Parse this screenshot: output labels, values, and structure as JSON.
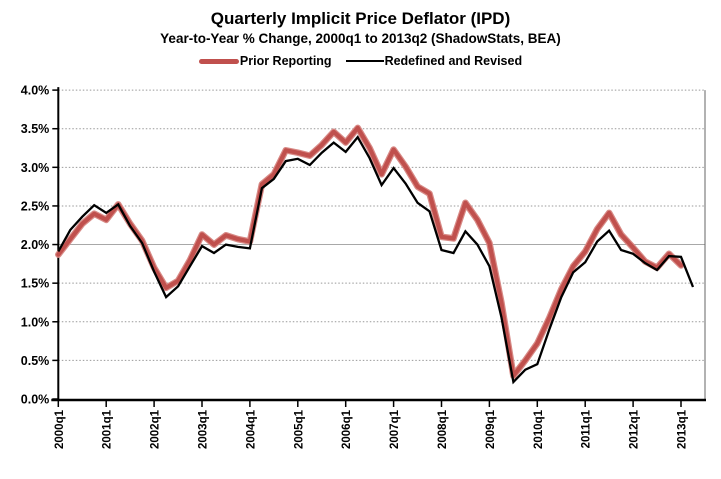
{
  "chart_data": {
    "type": "line",
    "title": "Quarterly Implicit Price Deflator (IPD)",
    "subtitle": "Year-to-Year % Change, 2000q1 to 2013q2 (ShadowStats, BEA)",
    "x_range": [
      "2000q1",
      "2013q2"
    ],
    "x_frequency": "quarterly",
    "x_tick_labels": [
      "2000q1",
      "2001q1",
      "2002q1",
      "2003q1",
      "2004q1",
      "2005q1",
      "2006q1",
      "2007q1",
      "2008q1",
      "2009q1",
      "2010q1",
      "2011q1",
      "2012q1",
      "2013q1"
    ],
    "y_tick_labels": [
      "0.0%",
      "0.5%",
      "1.0%",
      "1.5%",
      "2.0%",
      "2.5%",
      "3.0%",
      "3.5%",
      "4.0%"
    ],
    "ylim": [
      0,
      4
    ],
    "y_unit": "%",
    "grid": "horizontal-dotted",
    "legend_position": "top-center",
    "series": [
      {
        "name": "Prior Reporting",
        "color": "#c0504d",
        "halo_color": "#d88a86",
        "line_width": 4.2,
        "values": [
          1.87,
          2.07,
          2.27,
          2.4,
          2.32,
          2.52,
          2.27,
          2.05,
          1.7,
          1.44,
          1.53,
          1.8,
          2.13,
          2.0,
          2.12,
          2.07,
          2.04,
          2.78,
          2.91,
          3.22,
          3.19,
          3.15,
          3.29,
          3.46,
          3.32,
          3.51,
          3.25,
          2.91,
          3.23,
          3.01,
          2.75,
          2.66,
          2.1,
          2.08,
          2.54,
          2.32,
          2.02,
          1.25,
          0.3,
          0.5,
          0.72,
          1.05,
          1.42,
          1.72,
          1.91,
          2.2,
          2.41,
          2.13,
          1.96,
          1.78,
          1.7,
          1.88,
          1.73,
          null
        ]
      },
      {
        "name": "Redefined and Revised",
        "color": "#000000",
        "halo_color": null,
        "line_width": 2.3,
        "values": [
          1.91,
          2.19,
          2.36,
          2.51,
          2.41,
          2.52,
          2.24,
          2.02,
          1.65,
          1.32,
          1.46,
          1.72,
          1.98,
          1.89,
          2.0,
          1.97,
          1.95,
          2.73,
          2.85,
          3.08,
          3.11,
          3.03,
          3.19,
          3.32,
          3.2,
          3.39,
          3.12,
          2.77,
          2.99,
          2.79,
          2.54,
          2.43,
          1.93,
          1.89,
          2.17,
          2.0,
          1.72,
          1.06,
          0.22,
          0.38,
          0.45,
          0.9,
          1.32,
          1.64,
          1.77,
          2.04,
          2.18,
          1.93,
          1.88,
          1.76,
          1.67,
          1.85,
          1.84,
          1.45
        ]
      }
    ]
  },
  "colors": {
    "grid": "#999999",
    "solid_gridline_2pct": "#a8a8a8",
    "axis": "#000000",
    "background": "#ffffff",
    "text": "#000000"
  }
}
